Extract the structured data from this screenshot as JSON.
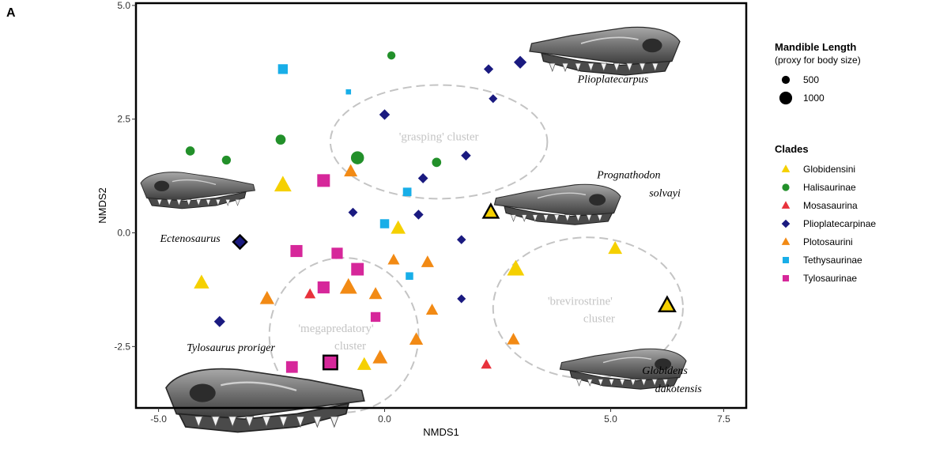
{
  "panel_label": "A",
  "chart_data": {
    "type": "scatter",
    "xlabel": "NMDS1",
    "ylabel": "NMDS2",
    "xlim": [
      -5.5,
      8.0
    ],
    "ylim": [
      -3.85,
      5.05
    ],
    "xticks": [
      -5.0,
      0.0,
      5.0,
      7.5
    ],
    "xtick_labels": [
      "-5.0",
      "0.0",
      "5.0",
      "7.5"
    ],
    "yticks": [
      -2.5,
      0.0,
      2.5,
      5.0
    ],
    "ytick_labels": [
      "-2.5",
      "0.0",
      "2.5",
      "5.0"
    ],
    "grid": false,
    "legend_position": "right",
    "size_legend": {
      "title": "Mandible Length",
      "subtitle": "(proxy for body size)",
      "entries": [
        {
          "label": "500",
          "value": 500
        },
        {
          "label": "1000",
          "value": 1000
        }
      ]
    },
    "clades_legend": {
      "title": "Clades",
      "entries": [
        {
          "name": "Globidensini",
          "color": "#f5d000",
          "shape": "triangle"
        },
        {
          "name": "Halisaurinae",
          "color": "#22902a",
          "shape": "circle"
        },
        {
          "name": "Mosasaurina",
          "color": "#e8323c",
          "shape": "triangle"
        },
        {
          "name": "Plioplatecarpinae",
          "color": "#1a1a80",
          "shape": "diamond"
        },
        {
          "name": "Plotosaurini",
          "color": "#f28a14",
          "shape": "triangle"
        },
        {
          "name": "Tethysaurinae",
          "color": "#18aee8",
          "shape": "square"
        },
        {
          "name": "Tylosaurinae",
          "color": "#d6279a",
          "shape": "square"
        }
      ]
    },
    "clusters": [
      {
        "label": "'grasping' cluster",
        "center": [
          1.2,
          2.0
        ],
        "radii": [
          2.4,
          1.25
        ]
      },
      {
        "label": "'megapredatory' cluster",
        "center": [
          -0.9,
          -2.25
        ],
        "radii": [
          1.65,
          1.7
        ]
      },
      {
        "label": "'brevirostrine' cluster",
        "center": [
          4.5,
          -1.65
        ],
        "radii": [
          2.1,
          1.55
        ]
      }
    ],
    "points": [
      {
        "x": 3.0,
        "y": 3.75,
        "clade": "Plioplatecarpinae",
        "size": 650
      },
      {
        "x": 2.3,
        "y": 3.6,
        "clade": "Plioplatecarpinae",
        "size": 400
      },
      {
        "x": 2.4,
        "y": 2.95,
        "clade": "Plioplatecarpinae",
        "size": 330
      },
      {
        "x": 0.0,
        "y": 2.6,
        "clade": "Plioplatecarpinae",
        "size": 480
      },
      {
        "x": 1.8,
        "y": 1.7,
        "clade": "Plioplatecarpinae",
        "size": 420
      },
      {
        "x": 0.85,
        "y": 1.2,
        "clade": "Plioplatecarpinae",
        "size": 430
      },
      {
        "x": -0.7,
        "y": 0.45,
        "clade": "Plioplatecarpinae",
        "size": 380
      },
      {
        "x": 0.75,
        "y": 0.4,
        "clade": "Plioplatecarpinae",
        "size": 420
      },
      {
        "x": 1.7,
        "y": -0.15,
        "clade": "Plioplatecarpinae",
        "size": 360
      },
      {
        "x": 1.7,
        "y": -1.45,
        "clade": "Plioplatecarpinae",
        "size": 330
      },
      {
        "x": -3.65,
        "y": -1.95,
        "clade": "Plioplatecarpinae",
        "size": 520
      },
      {
        "x": -3.2,
        "y": -0.2,
        "clade": "Plioplatecarpinae",
        "size": 650,
        "outlined": true
      },
      {
        "x": 0.15,
        "y": 3.9,
        "clade": "Halisaurinae",
        "size": 380
      },
      {
        "x": -4.3,
        "y": 1.8,
        "clade": "Halisaurinae",
        "size": 470
      },
      {
        "x": -3.5,
        "y": 1.6,
        "clade": "Halisaurinae",
        "size": 450
      },
      {
        "x": -2.3,
        "y": 2.05,
        "clade": "Halisaurinae",
        "size": 550
      },
      {
        "x": -0.6,
        "y": 1.65,
        "clade": "Halisaurinae",
        "size": 820
      },
      {
        "x": 1.15,
        "y": 1.55,
        "clade": "Halisaurinae",
        "size": 480
      },
      {
        "x": -2.25,
        "y": 3.6,
        "clade": "Tethysaurinae",
        "size": 650
      },
      {
        "x": -0.8,
        "y": 3.1,
        "clade": "Tethysaurinae",
        "size": 180
      },
      {
        "x": 0.5,
        "y": 0.9,
        "clade": "Tethysaurinae",
        "size": 520
      },
      {
        "x": 0.0,
        "y": 0.2,
        "clade": "Tethysaurinae",
        "size": 580
      },
      {
        "x": 0.55,
        "y": -0.95,
        "clade": "Tethysaurinae",
        "size": 420
      },
      {
        "x": -1.35,
        "y": 1.15,
        "clade": "Tylosaurinae",
        "size": 950
      },
      {
        "x": -1.95,
        "y": -0.4,
        "clade": "Tylosaurinae",
        "size": 880
      },
      {
        "x": -1.05,
        "y": -0.45,
        "clade": "Tylosaurinae",
        "size": 800
      },
      {
        "x": -0.6,
        "y": -0.8,
        "clade": "Tylosaurinae",
        "size": 940
      },
      {
        "x": -1.35,
        "y": -1.2,
        "clade": "Tylosaurinae",
        "size": 880
      },
      {
        "x": -0.2,
        "y": -1.85,
        "clade": "Tylosaurinae",
        "size": 650
      },
      {
        "x": -2.05,
        "y": -2.95,
        "clade": "Tylosaurinae",
        "size": 850
      },
      {
        "x": -1.2,
        "y": -2.85,
        "clade": "Tylosaurinae",
        "size": 1000,
        "outlined": true
      },
      {
        "x": -2.25,
        "y": 1.05,
        "clade": "Globidensini",
        "size": 1000
      },
      {
        "x": 0.3,
        "y": 0.1,
        "clade": "Globidensini",
        "size": 800
      },
      {
        "x": 2.35,
        "y": 0.45,
        "clade": "Globidensini",
        "size": 750,
        "outlined": true
      },
      {
        "x": 2.9,
        "y": -0.8,
        "clade": "Globidensini",
        "size": 1000
      },
      {
        "x": 5.1,
        "y": -0.35,
        "clade": "Globidensini",
        "size": 750
      },
      {
        "x": 6.25,
        "y": -1.6,
        "clade": "Globidensini",
        "size": 820,
        "outlined": true
      },
      {
        "x": -4.05,
        "y": -1.1,
        "clade": "Globidensini",
        "size": 850
      },
      {
        "x": -0.45,
        "y": -2.9,
        "clade": "Globidensini",
        "size": 750
      },
      {
        "x": -1.65,
        "y": -1.35,
        "clade": "Mosasaurina",
        "size": 520
      },
      {
        "x": 2.25,
        "y": -2.9,
        "clade": "Mosasaurina",
        "size": 480
      },
      {
        "x": -0.75,
        "y": 1.35,
        "clade": "Plotosaurini",
        "size": 700
      },
      {
        "x": 0.2,
        "y": -0.6,
        "clade": "Plotosaurini",
        "size": 580
      },
      {
        "x": 0.95,
        "y": -0.65,
        "clade": "Plotosaurini",
        "size": 650
      },
      {
        "x": -2.6,
        "y": -1.45,
        "clade": "Plotosaurini",
        "size": 780
      },
      {
        "x": -0.8,
        "y": -1.2,
        "clade": "Plotosaurini",
        "size": 1000
      },
      {
        "x": -0.2,
        "y": -1.35,
        "clade": "Plotosaurini",
        "size": 680
      },
      {
        "x": 1.05,
        "y": -1.7,
        "clade": "Plotosaurini",
        "size": 600
      },
      {
        "x": 0.7,
        "y": -2.35,
        "clade": "Plotosaurini",
        "size": 720
      },
      {
        "x": -0.1,
        "y": -2.75,
        "clade": "Plotosaurini",
        "size": 820
      },
      {
        "x": 2.85,
        "y": -2.35,
        "clade": "Plotosaurini",
        "size": 650
      }
    ],
    "taxon_labels": [
      {
        "text": "Plioplatecarpus",
        "x": 5.05,
        "y": 3.3
      },
      {
        "text": "Prognathodon",
        "x": 5.4,
        "y": 1.2
      },
      {
        "text": "solvayi",
        "x": 6.2,
        "y": 0.8
      },
      {
        "text": "Ectenosaurus",
        "x": -4.3,
        "y": -0.2
      },
      {
        "text": "Tylosaurus proriger",
        "x": -3.4,
        "y": -2.6
      },
      {
        "text": "Globidens",
        "x": 6.2,
        "y": -3.1
      },
      {
        "text": "dakotensis",
        "x": 6.5,
        "y": -3.5
      }
    ]
  }
}
